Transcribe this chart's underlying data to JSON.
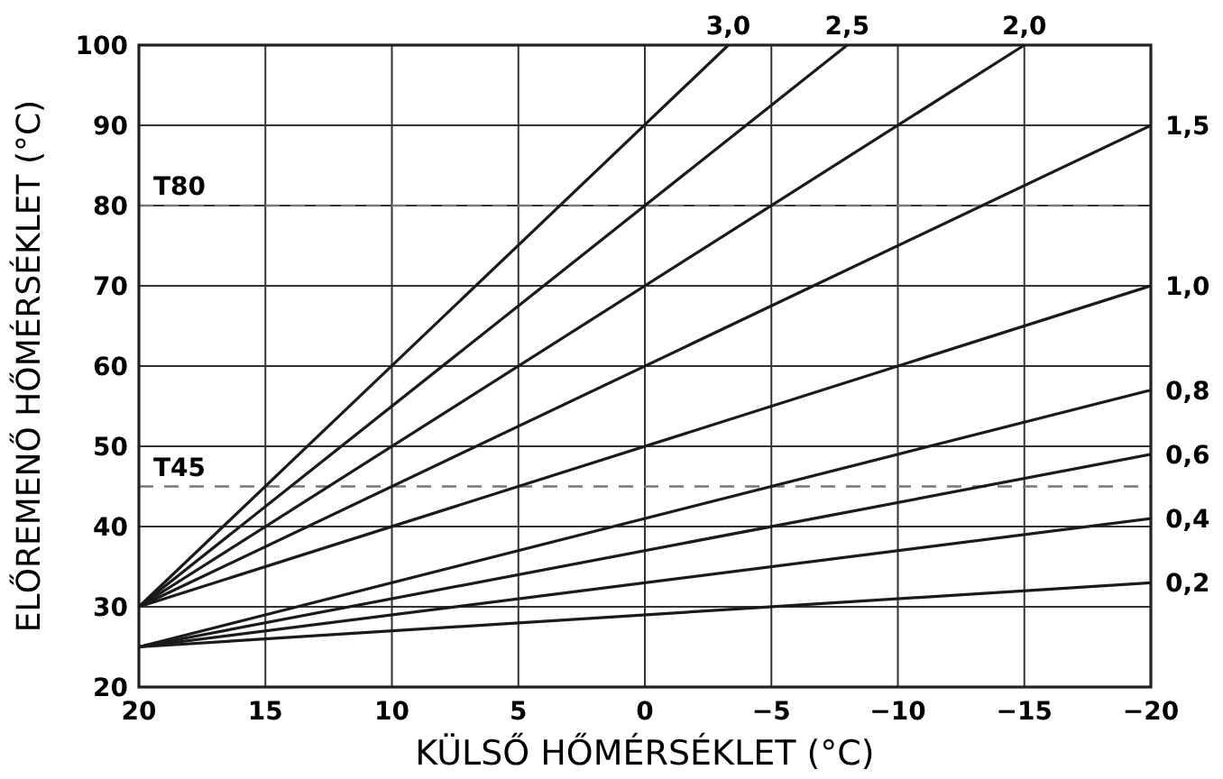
{
  "chart_data": {
    "type": "line",
    "xlabel": "KÜLSŐ HŐMÉRSÉKLET (°C)",
    "ylabel": "ELŐREMENŐ HŐMÉRSÉKLET (°C)",
    "xlim": [
      20,
      -20
    ],
    "ylim": [
      20,
      100
    ],
    "xticks": [
      20,
      15,
      10,
      5,
      0,
      {
        "value": -5,
        "label": "−5"
      },
      {
        "value": -10,
        "label": "−10"
      },
      {
        "value": -15,
        "label": "−15"
      },
      {
        "value": -20,
        "label": "−20"
      }
    ],
    "yticks": [
      20,
      30,
      40,
      50,
      60,
      70,
      80,
      90,
      100
    ],
    "grid": true,
    "marker": "none",
    "line_style": "solid",
    "series": [
      {
        "name": "3,0",
        "color": "#1a1a1a",
        "x": [
          20,
          -3.3
        ],
        "values": [
          30,
          100
        ]
      },
      {
        "name": "2,5",
        "color": "#1a1a1a",
        "x": [
          20,
          -8
        ],
        "values": [
          30,
          100
        ]
      },
      {
        "name": "2,0",
        "color": "#1a1a1a",
        "x": [
          20,
          -15
        ],
        "values": [
          30,
          100
        ]
      },
      {
        "name": "1,5",
        "color": "#1a1a1a",
        "x": [
          20,
          -20
        ],
        "values": [
          30,
          90
        ]
      },
      {
        "name": "1,0",
        "color": "#1a1a1a",
        "x": [
          20,
          -20
        ],
        "values": [
          30,
          70
        ]
      },
      {
        "name": "0,8",
        "color": "#1a1a1a",
        "x": [
          20,
          -20
        ],
        "values": [
          25,
          57
        ]
      },
      {
        "name": "0,6",
        "color": "#1a1a1a",
        "x": [
          20,
          -20
        ],
        "values": [
          25,
          49
        ]
      },
      {
        "name": "0,4",
        "color": "#1a1a1a",
        "x": [
          20,
          -20
        ],
        "values": [
          25,
          41
        ]
      },
      {
        "name": "0,2",
        "color": "#1a1a1a",
        "x": [
          20,
          -20
        ],
        "values": [
          25,
          33
        ]
      }
    ],
    "ref_lines": [
      {
        "axis": "y",
        "value": 80,
        "label": "T80",
        "color": "#777777",
        "line_style": "dashed"
      },
      {
        "axis": "y",
        "value": 45,
        "label": "T45",
        "color": "#777777",
        "line_style": "dashed"
      }
    ]
  }
}
